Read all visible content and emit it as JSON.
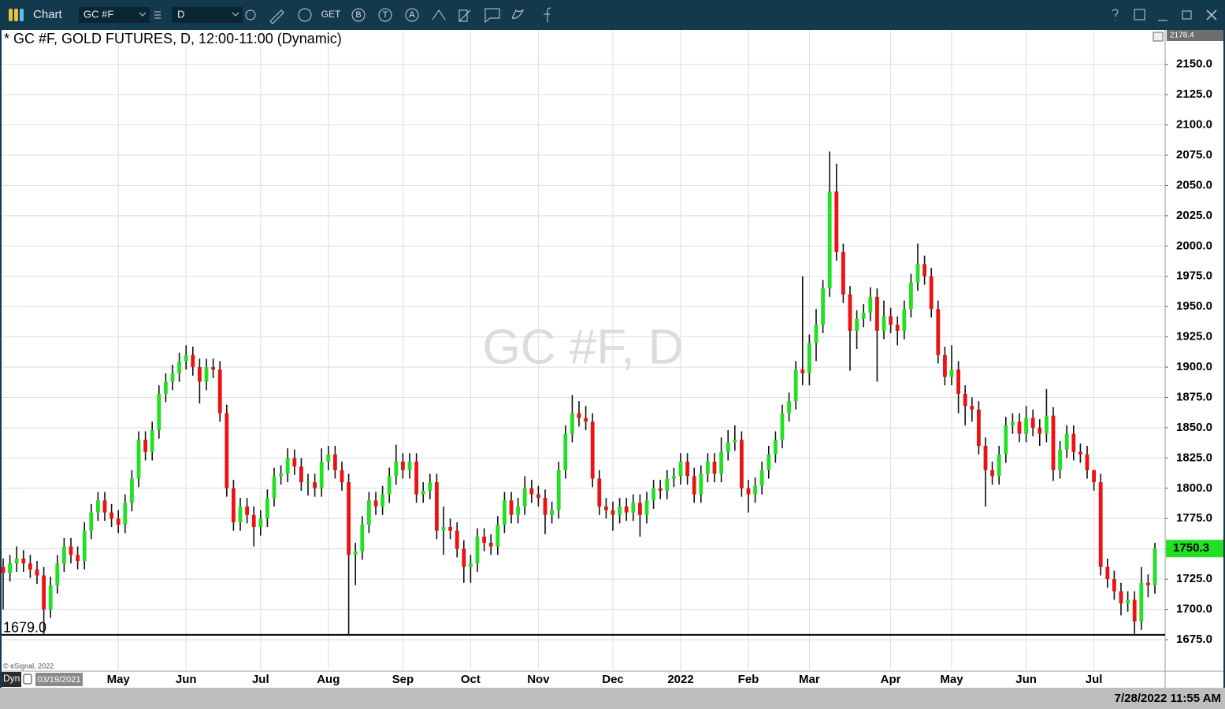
{
  "toolbar": {
    "title": "Chart",
    "symbol": "GC #F",
    "interval": "D",
    "buttons": [
      "GET",
      "B",
      "T",
      "A"
    ]
  },
  "chart_data": {
    "type": "candlestick",
    "title": "* GC #F, GOLD FUTURES, D, 12:00-11:00 (Dynamic)",
    "watermark": "GC #F, D",
    "copyright": "© eSignal, 2022",
    "mode": "Dyn",
    "start_date": "03/19/2021",
    "timestamp": "7/28/2022 11:55 AM",
    "up_color": "#22e022",
    "down_color": "#ee1111",
    "grid": true,
    "ylim": [
      1649,
      2178.4
    ],
    "yticks": [
      {
        "value": 1675,
        "label": "1675.0"
      },
      {
        "value": 1700,
        "label": "1700.0"
      },
      {
        "value": 1725,
        "label": "1725.0"
      },
      {
        "value": 1750,
        "label": "1750.0"
      },
      {
        "value": 1775,
        "label": "1775.0"
      },
      {
        "value": 1800,
        "label": "1800.0"
      },
      {
        "value": 1825,
        "label": "1825.0"
      },
      {
        "value": 1850,
        "label": "1850.0"
      },
      {
        "value": 1875,
        "label": "1875.0"
      },
      {
        "value": 1900,
        "label": "1900.0"
      },
      {
        "value": 1925,
        "label": "1925.0"
      },
      {
        "value": 1950,
        "label": "1950.0"
      },
      {
        "value": 1975,
        "label": "1975.0"
      },
      {
        "value": 2000,
        "label": "2000.0"
      },
      {
        "value": 2025,
        "label": "2025.0"
      },
      {
        "value": 2050,
        "label": "2050.0"
      },
      {
        "value": 2075,
        "label": "2075.0"
      },
      {
        "value": 2100,
        "label": "2100.0"
      },
      {
        "value": 2125,
        "label": "2125.0"
      },
      {
        "value": 2150,
        "label": "2150.0"
      }
    ],
    "hline": {
      "value": 1679,
      "label": "1679.0"
    },
    "categories": [
      null,
      null,
      null,
      null,
      null,
      null,
      null,
      null,
      null,
      null,
      null,
      null,
      null,
      null,
      null,
      null,
      null,
      "May",
      null,
      null,
      null,
      null,
      null,
      null,
      null,
      null,
      null,
      "Jun",
      null,
      null,
      null,
      null,
      null,
      null,
      null,
      null,
      null,
      null,
      "Jul",
      null,
      null,
      null,
      null,
      null,
      null,
      null,
      null,
      null,
      "Aug",
      null,
      null,
      null,
      null,
      null,
      null,
      null,
      null,
      null,
      null,
      "Sep",
      null,
      null,
      null,
      null,
      null,
      null,
      null,
      null,
      null,
      "Oct",
      null,
      null,
      null,
      null,
      null,
      null,
      null,
      null,
      null,
      "Nov",
      null,
      null,
      null,
      null,
      null,
      null,
      null,
      null,
      null,
      null,
      "Dec",
      null,
      null,
      null,
      null,
      null,
      null,
      null,
      null,
      null,
      "2022",
      null,
      null,
      null,
      null,
      null,
      null,
      null,
      null,
      null,
      "Feb",
      null,
      null,
      null,
      null,
      null,
      null,
      null,
      null,
      "Mar",
      null,
      null,
      null,
      null,
      null,
      null,
      null,
      null,
      null,
      null,
      null,
      "Apr",
      null,
      null,
      null,
      null,
      null,
      null,
      null,
      null,
      "May",
      null,
      null,
      null,
      null,
      null,
      null,
      null,
      null,
      null,
      null,
      "Jun",
      null,
      null,
      null,
      null,
      null,
      null,
      null,
      null,
      null,
      "Jul",
      null,
      null,
      null,
      null,
      null,
      null,
      null,
      null,
      null
    ],
    "open": [
      1735,
      1730,
      1738,
      1742,
      1738,
      1733,
      1728,
      1700,
      1720,
      1738,
      1752,
      1745,
      1740,
      1765,
      1780,
      1790,
      1780,
      1775,
      1770,
      1788,
      1808,
      1840,
      1830,
      1848,
      1878,
      1888,
      1895,
      1905,
      1910,
      1900,
      1888,
      1900,
      1898,
      1862,
      1800,
      1772,
      1785,
      1778,
      1768,
      1775,
      1792,
      1810,
      1812,
      1825,
      1818,
      1805,
      1805,
      1800,
      1822,
      1828,
      1815,
      1805,
      1745,
      1748,
      1770,
      1790,
      1785,
      1795,
      1810,
      1822,
      1815,
      1822,
      1795,
      1798,
      1805,
      1765,
      1768,
      1765,
      1750,
      1735,
      1738,
      1760,
      1755,
      1752,
      1770,
      1790,
      1778,
      1785,
      1800,
      1795,
      1792,
      1778,
      1782,
      1815,
      1845,
      1862,
      1858,
      1855,
      1808,
      1785,
      1782,
      1778,
      1785,
      1780,
      1788,
      1778,
      1790,
      1800,
      1798,
      1808,
      1810,
      1822,
      1810,
      1795,
      1812,
      1822,
      1812,
      1830,
      1838,
      1840,
      1800,
      1795,
      1802,
      1815,
      1828,
      1840,
      1862,
      1872,
      1898,
      1895,
      1920,
      1935,
      1965,
      2045,
      1995,
      1960,
      1930,
      1940,
      1945,
      1958,
      1930,
      1942,
      1935,
      1930,
      1948,
      1970,
      1985,
      1975,
      1948,
      1910,
      1892,
      1898,
      1878,
      1868,
      1865,
      1835,
      1815,
      1810,
      1828,
      1852,
      1855,
      1845,
      1858,
      1850,
      1845,
      1860,
      1815,
      1832,
      1845,
      1830,
      1828,
      1815,
      1805,
      1735,
      1725,
      1715,
      1705,
      1708,
      1690,
      1722,
      1720
    ],
    "high": [
      1742,
      1745,
      1752,
      1749,
      1745,
      1740,
      1735,
      1727,
      1745,
      1759,
      1759,
      1752,
      1772,
      1787,
      1797,
      1797,
      1787,
      1782,
      1795,
      1815,
      1847,
      1847,
      1855,
      1885,
      1895,
      1902,
      1912,
      1918,
      1917,
      1907,
      1907,
      1907,
      1905,
      1869,
      1807,
      1792,
      1792,
      1785,
      1782,
      1799,
      1817,
      1819,
      1833,
      1832,
      1825,
      1812,
      1812,
      1833,
      1835,
      1835,
      1822,
      1812,
      1755,
      1777,
      1797,
      1797,
      1802,
      1817,
      1836,
      1829,
      1829,
      1829,
      1805,
      1812,
      1812,
      1785,
      1775,
      1772,
      1757,
      1745,
      1767,
      1767,
      1762,
      1777,
      1797,
      1797,
      1792,
      1810,
      1807,
      1802,
      1799,
      1789,
      1822,
      1852,
      1877,
      1872,
      1868,
      1862,
      1815,
      1792,
      1789,
      1792,
      1792,
      1795,
      1795,
      1797,
      1807,
      1807,
      1815,
      1817,
      1829,
      1829,
      1817,
      1819,
      1829,
      1829,
      1842,
      1848,
      1852,
      1847,
      1807,
      1809,
      1822,
      1835,
      1847,
      1869,
      1879,
      1905,
      1975,
      1927,
      1948,
      1972,
      2078,
      2068,
      2002,
      1967,
      1947,
      1952,
      1966,
      1965,
      1955,
      1949,
      1942,
      1955,
      1977,
      2002,
      1992,
      1982,
      1955,
      1917,
      1918,
      1905,
      1885,
      1875,
      1872,
      1842,
      1822,
      1835,
      1859,
      1862,
      1862,
      1868,
      1865,
      1857,
      1882,
      1867,
      1839,
      1852,
      1852,
      1837,
      1835,
      1815,
      1812,
      1742,
      1732,
      1722,
      1715,
      1715,
      1735,
      1729,
      1755
    ],
    "low": [
      1700,
      1723,
      1731,
      1731,
      1726,
      1721,
      1679,
      1693,
      1713,
      1731,
      1738,
      1733,
      1733,
      1758,
      1773,
      1773,
      1768,
      1763,
      1763,
      1781,
      1801,
      1823,
      1823,
      1841,
      1871,
      1881,
      1888,
      1898,
      1893,
      1870,
      1881,
      1891,
      1855,
      1793,
      1765,
      1765,
      1771,
      1752,
      1761,
      1768,
      1785,
      1803,
      1805,
      1811,
      1798,
      1794,
      1793,
      1793,
      1815,
      1808,
      1798,
      1679,
      1720,
      1741,
      1763,
      1778,
      1778,
      1788,
      1803,
      1808,
      1808,
      1788,
      1788,
      1791,
      1758,
      1745,
      1758,
      1743,
      1722,
      1722,
      1731,
      1748,
      1745,
      1745,
      1763,
      1771,
      1771,
      1778,
      1788,
      1785,
      1762,
      1771,
      1775,
      1808,
      1838,
      1851,
      1848,
      1801,
      1778,
      1775,
      1765,
      1771,
      1773,
      1773,
      1760,
      1771,
      1783,
      1791,
      1791,
      1801,
      1803,
      1803,
      1788,
      1788,
      1805,
      1805,
      1805,
      1823,
      1831,
      1793,
      1780,
      1788,
      1795,
      1808,
      1821,
      1833,
      1855,
      1865,
      1885,
      1885,
      1905,
      1928,
      1958,
      1988,
      1953,
      1897,
      1915,
      1933,
      1938,
      1888,
      1923,
      1928,
      1918,
      1923,
      1941,
      1963,
      1968,
      1941,
      1903,
      1885,
      1885,
      1862,
      1852,
      1855,
      1828,
      1785,
      1803,
      1803,
      1821,
      1845,
      1838,
      1838,
      1843,
      1835,
      1838,
      1806,
      1808,
      1825,
      1823,
      1821,
      1808,
      1798,
      1728,
      1718,
      1708,
      1695,
      1698,
      1679,
      1683,
      1710,
      1713
    ],
    "close": [
      1730,
      1738,
      1742,
      1738,
      1733,
      1728,
      1700,
      1720,
      1738,
      1752,
      1745,
      1740,
      1765,
      1780,
      1790,
      1780,
      1775,
      1770,
      1788,
      1808,
      1840,
      1830,
      1848,
      1878,
      1888,
      1895,
      1905,
      1910,
      1900,
      1888,
      1900,
      1898,
      1862,
      1800,
      1772,
      1785,
      1778,
      1768,
      1775,
      1792,
      1810,
      1812,
      1825,
      1818,
      1805,
      1805,
      1800,
      1822,
      1828,
      1815,
      1805,
      1745,
      1748,
      1770,
      1790,
      1785,
      1795,
      1810,
      1822,
      1815,
      1822,
      1795,
      1798,
      1805,
      1765,
      1768,
      1765,
      1750,
      1735,
      1738,
      1760,
      1755,
      1752,
      1770,
      1790,
      1778,
      1785,
      1800,
      1795,
      1792,
      1778,
      1782,
      1815,
      1845,
      1862,
      1858,
      1855,
      1808,
      1785,
      1782,
      1778,
      1785,
      1780,
      1788,
      1778,
      1790,
      1800,
      1798,
      1808,
      1810,
      1822,
      1810,
      1795,
      1812,
      1822,
      1812,
      1830,
      1838,
      1840,
      1800,
      1795,
      1802,
      1815,
      1828,
      1840,
      1862,
      1872,
      1898,
      1895,
      1920,
      1935,
      1965,
      2045,
      1995,
      1960,
      1930,
      1940,
      1945,
      1958,
      1930,
      1942,
      1935,
      1930,
      1948,
      1970,
      1985,
      1975,
      1948,
      1910,
      1892,
      1898,
      1878,
      1868,
      1865,
      1835,
      1815,
      1810,
      1828,
      1852,
      1855,
      1845,
      1858,
      1850,
      1845,
      1860,
      1815,
      1832,
      1845,
      1830,
      1828,
      1815,
      1805,
      1735,
      1725,
      1715,
      1705,
      1708,
      1690,
      1722,
      1720,
      1750.3
    ]
  }
}
